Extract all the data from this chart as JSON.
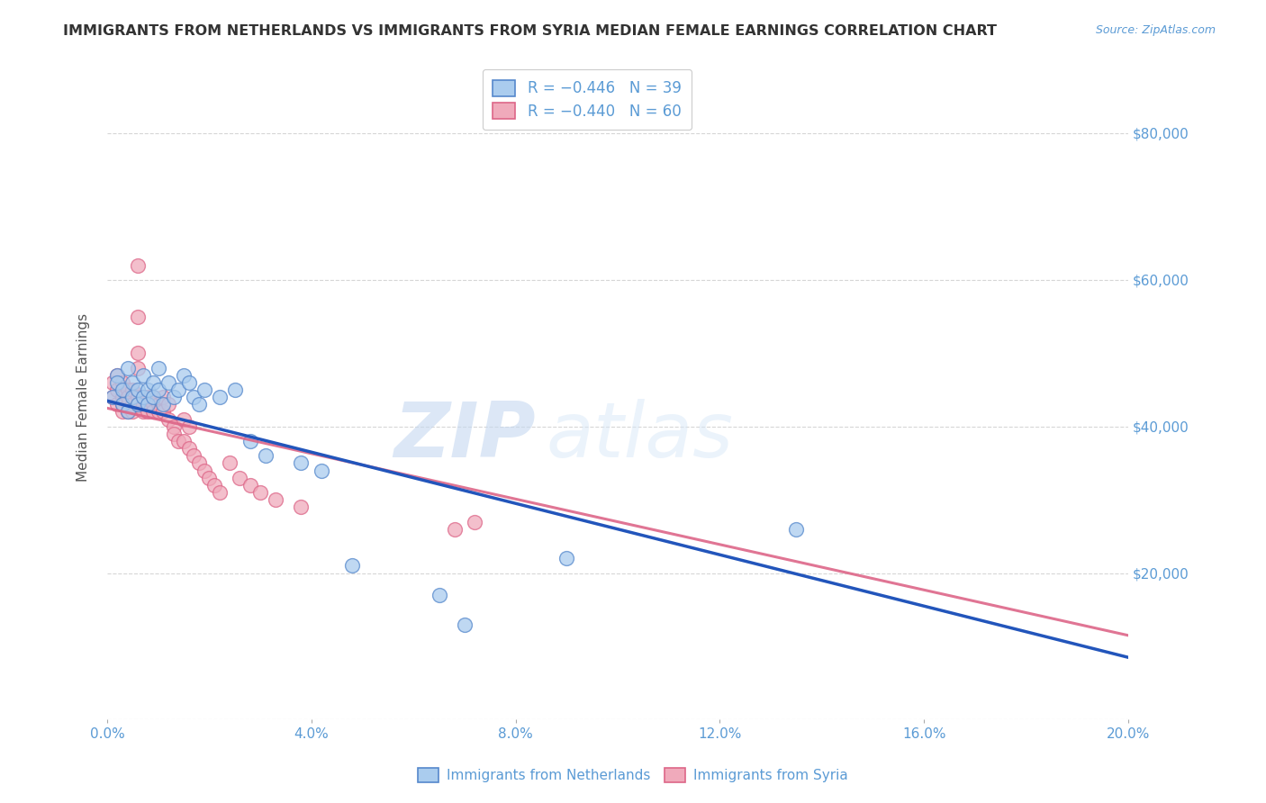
{
  "title": "IMMIGRANTS FROM NETHERLANDS VS IMMIGRANTS FROM SYRIA MEDIAN FEMALE EARNINGS CORRELATION CHART",
  "source": "Source: ZipAtlas.com",
  "ylabel": "Median Female Earnings",
  "xlim": [
    0,
    0.2
  ],
  "ylim": [
    0,
    88000
  ],
  "xticks": [
    0.0,
    0.04,
    0.08,
    0.12,
    0.16,
    0.2
  ],
  "yticks": [
    0,
    20000,
    40000,
    60000,
    80000
  ],
  "ytick_labels": [
    "",
    "$20,000",
    "$40,000",
    "$60,000",
    "$80,000"
  ],
  "netherlands_color": "#aaccee",
  "netherlands_edge": "#5588cc",
  "syria_color": "#f0aabb",
  "syria_edge": "#dd6688",
  "netherlands_label": "Immigrants from Netherlands",
  "syria_label": "Immigrants from Syria",
  "netherlands_trend_x": [
    0.0,
    0.2
  ],
  "netherlands_trend_y": [
    43500,
    8500
  ],
  "syria_trend_x": [
    0.0,
    0.2
  ],
  "syria_trend_y": [
    42500,
    11500
  ],
  "watermark_zip": "ZIP",
  "watermark_atlas": "atlas",
  "background_color": "#ffffff",
  "grid_color": "#cccccc",
  "title_color": "#333333",
  "axis_color": "#5b9bd5",
  "trend_blue": "#2255bb",
  "trend_pink": "#dd6688",
  "netherlands_scatter_x": [
    0.001,
    0.002,
    0.002,
    0.003,
    0.003,
    0.004,
    0.004,
    0.005,
    0.005,
    0.006,
    0.006,
    0.007,
    0.007,
    0.008,
    0.008,
    0.009,
    0.009,
    0.01,
    0.01,
    0.011,
    0.012,
    0.013,
    0.014,
    0.015,
    0.016,
    0.017,
    0.018,
    0.019,
    0.022,
    0.025,
    0.028,
    0.031,
    0.038,
    0.042,
    0.048,
    0.065,
    0.07,
    0.09,
    0.135
  ],
  "netherlands_scatter_y": [
    44000,
    47000,
    46000,
    45000,
    43000,
    48000,
    42000,
    44000,
    46000,
    45000,
    43000,
    47000,
    44000,
    45000,
    43000,
    46000,
    44000,
    48000,
    45000,
    43000,
    46000,
    44000,
    45000,
    47000,
    46000,
    44000,
    43000,
    45000,
    44000,
    45000,
    38000,
    36000,
    35000,
    34000,
    21000,
    17000,
    13000,
    22000,
    26000
  ],
  "syria_scatter_x": [
    0.001,
    0.001,
    0.002,
    0.002,
    0.002,
    0.003,
    0.003,
    0.003,
    0.003,
    0.004,
    0.004,
    0.004,
    0.004,
    0.005,
    0.005,
    0.005,
    0.005,
    0.006,
    0.006,
    0.006,
    0.006,
    0.006,
    0.006,
    0.007,
    0.007,
    0.007,
    0.007,
    0.008,
    0.008,
    0.008,
    0.009,
    0.009,
    0.009,
    0.01,
    0.01,
    0.011,
    0.011,
    0.012,
    0.012,
    0.013,
    0.013,
    0.014,
    0.015,
    0.015,
    0.016,
    0.016,
    0.017,
    0.018,
    0.019,
    0.02,
    0.021,
    0.022,
    0.024,
    0.026,
    0.028,
    0.03,
    0.033,
    0.038,
    0.068,
    0.072
  ],
  "syria_scatter_y": [
    44000,
    46000,
    45000,
    43000,
    47000,
    44000,
    42000,
    46000,
    43000,
    45000,
    43000,
    44000,
    42000,
    44000,
    43000,
    45000,
    42000,
    62000,
    55000,
    50000,
    48000,
    44000,
    43000,
    44000,
    43000,
    42000,
    44000,
    43000,
    42000,
    44000,
    43000,
    42000,
    44000,
    43000,
    42000,
    44000,
    42000,
    43000,
    41000,
    40000,
    39000,
    38000,
    41000,
    38000,
    40000,
    37000,
    36000,
    35000,
    34000,
    33000,
    32000,
    31000,
    35000,
    33000,
    32000,
    31000,
    30000,
    29000,
    26000,
    27000
  ]
}
